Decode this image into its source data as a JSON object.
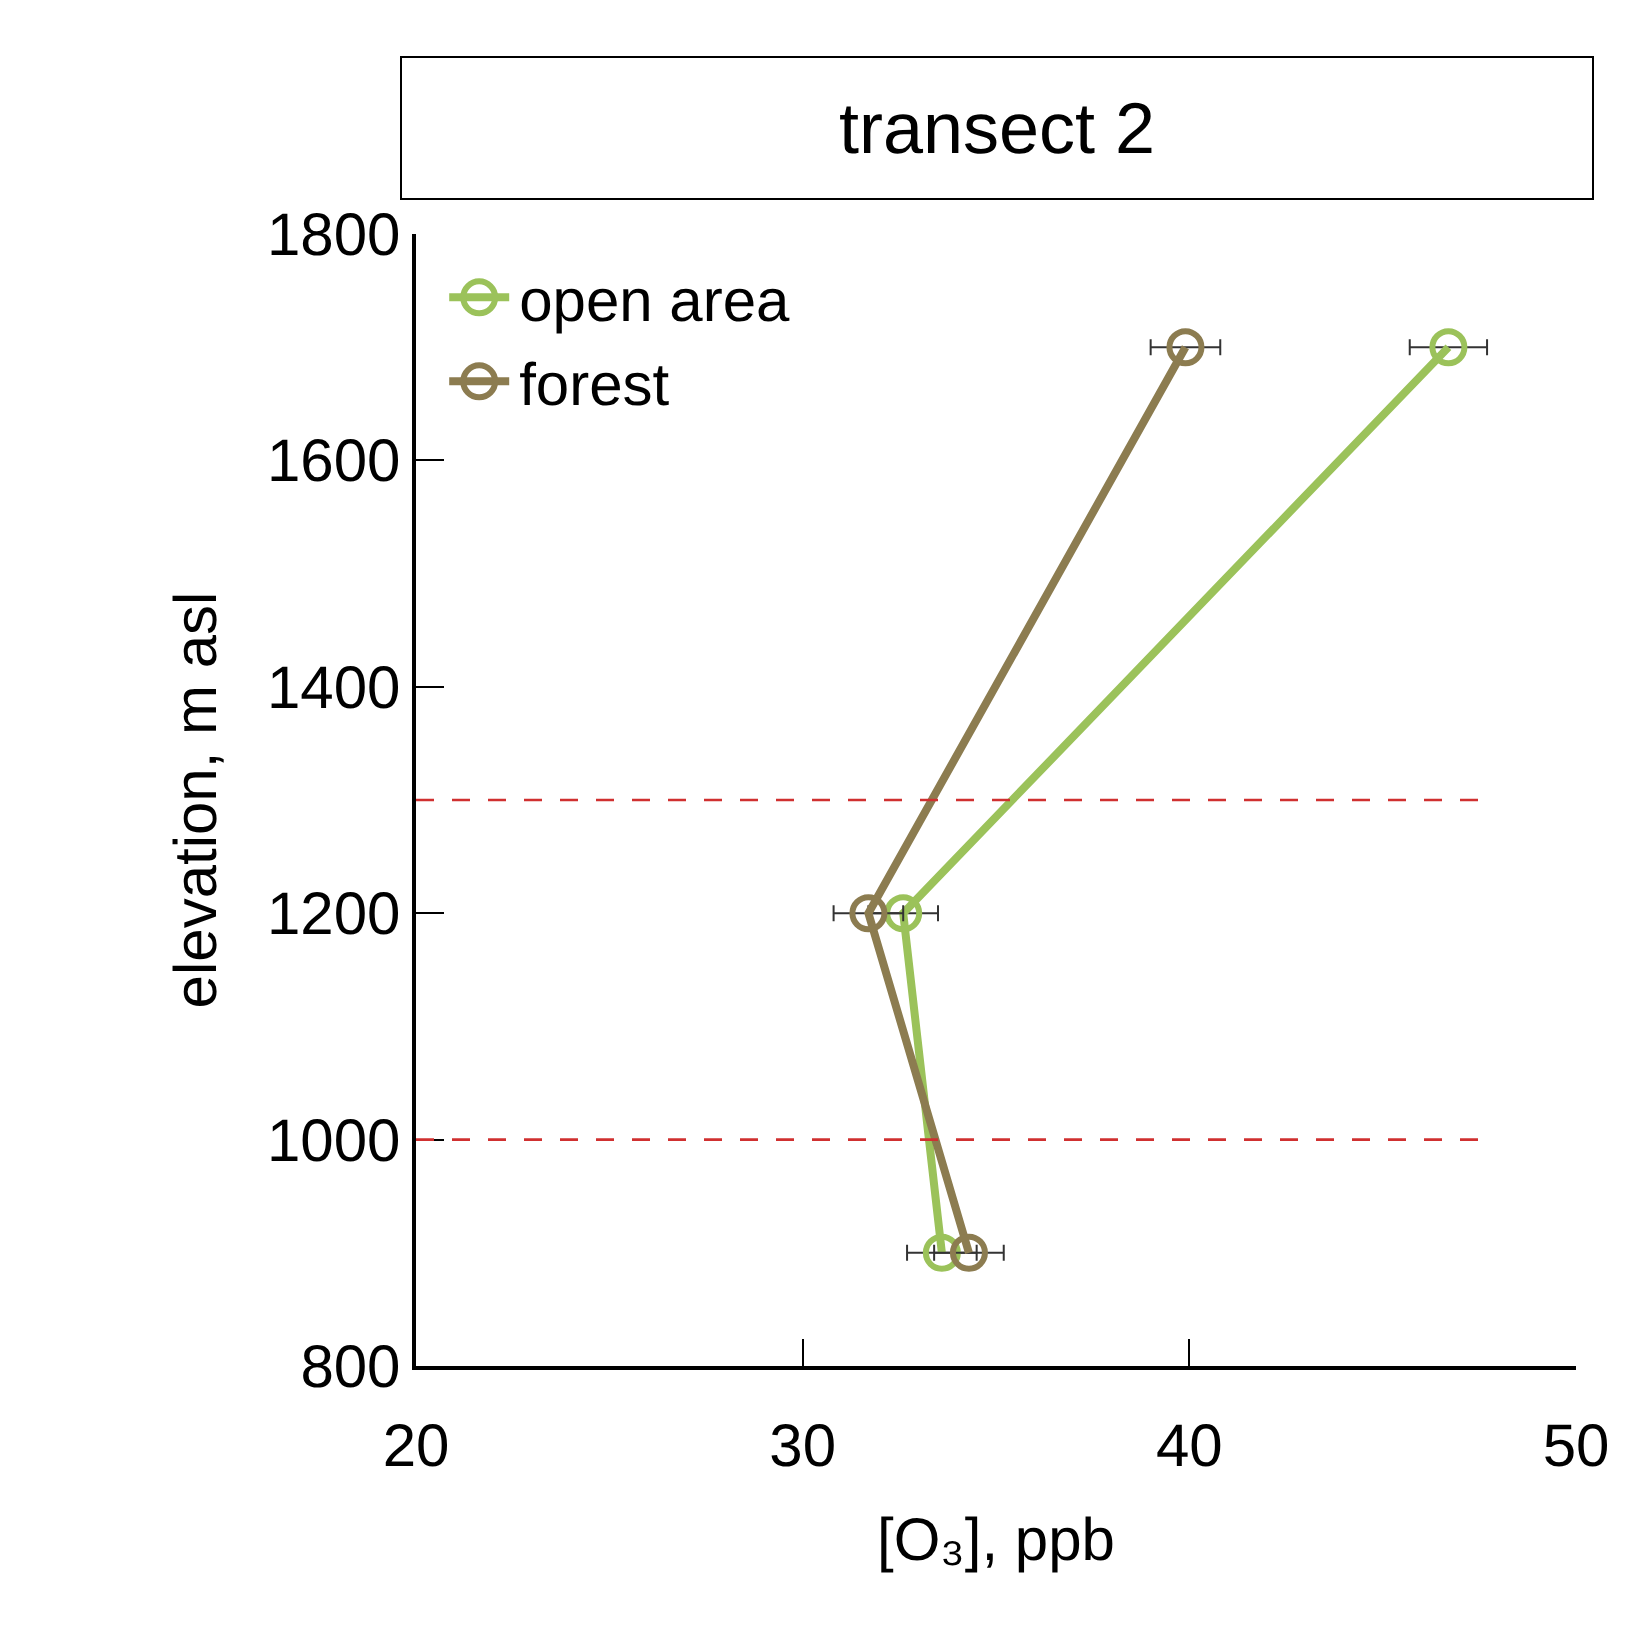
{
  "chart_data": {
    "type": "line",
    "title": "transect 2",
    "xlabel": "[O₃], ppb",
    "ylabel": "elevation, m asl",
    "xlim": [
      20,
      50
    ],
    "xticks": [
      20,
      30,
      40,
      50
    ],
    "ylim": [
      800,
      1800
    ],
    "yticks": [
      800,
      1000,
      1200,
      1400,
      1600,
      1800
    ],
    "grid": false,
    "legend": "top left",
    "marker": "circle",
    "line_style": "solid",
    "series": [
      {
        "name": "open area",
        "color": "#9bc25a",
        "x": [
          46.7,
          32.6,
          33.6
        ],
        "values": [
          1700,
          1200,
          900
        ],
        "xerrors": [
          1.0,
          0.9,
          0.9
        ]
      },
      {
        "name": "forest",
        "color": "#8c7c50",
        "x": [
          39.9,
          31.7,
          34.3
        ],
        "values": [
          1700,
          1200,
          900
        ],
        "xerrors": [
          0.9,
          0.9,
          0.9
        ]
      }
    ],
    "ref_lines": [
      {
        "axis": "y",
        "value": 1300,
        "color": "#d03030",
        "line_style": "dashed"
      },
      {
        "axis": "y",
        "value": 1000,
        "color": "#d03030",
        "line_style": "dashed"
      }
    ]
  }
}
